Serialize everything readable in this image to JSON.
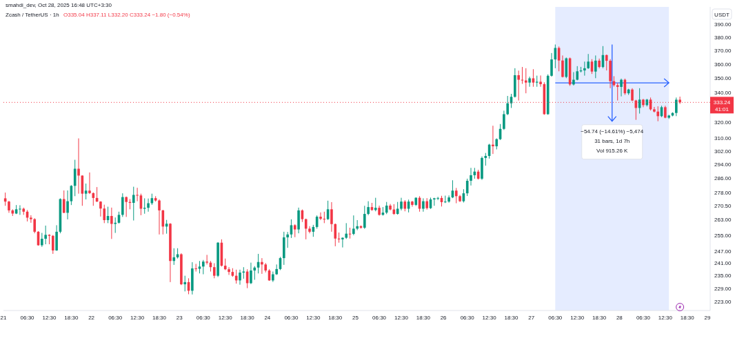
{
  "chart_data": {
    "type": "candlestick",
    "title": "Zcash / TetherUS · 1h",
    "subtitle": "smahdi_dev, Oct 28, 2025 16:48 UTC+3:30",
    "ylabel": "USDT",
    "log": true,
    "annotations": [
      "O335.04 H337.11 L332.20 C333.24 −1.80 (−0.54%)",
      "−54.74 (−14.61%) −5,474",
      "31 bars, 1d 7h",
      "Vol 915.26 K",
      "41:01"
    ],
    "xlim": [
      "2025-10-21T00:00",
      "2025-10-29T00:45"
    ],
    "xticks": [
      {
        "value": "2025-10-21T00:00",
        "label": "21"
      },
      {
        "value": "2025-10-21T06:30",
        "label": "06:30"
      },
      {
        "value": "2025-10-21T12:30",
        "label": "12:30"
      },
      {
        "value": "2025-10-21T18:30",
        "label": "18:30"
      },
      {
        "value": "2025-10-22T00:00",
        "label": "22"
      },
      {
        "value": "2025-10-22T06:30",
        "label": "06:30"
      },
      {
        "value": "2025-10-22T12:30",
        "label": "12:30"
      },
      {
        "value": "2025-10-22T18:30",
        "label": "18:30"
      },
      {
        "value": "2025-10-23T00:00",
        "label": "23"
      },
      {
        "value": "2025-10-23T06:30",
        "label": "06:30"
      },
      {
        "value": "2025-10-23T12:30",
        "label": "12:30"
      },
      {
        "value": "2025-10-23T18:30",
        "label": "18:30"
      },
      {
        "value": "2025-10-24T00:00",
        "label": "24"
      },
      {
        "value": "2025-10-24T06:30",
        "label": "06:30"
      },
      {
        "value": "2025-10-24T12:30",
        "label": "12:30"
      },
      {
        "value": "2025-10-24T18:30",
        "label": "18:30"
      },
      {
        "value": "2025-10-25T00:00",
        "label": "25"
      },
      {
        "value": "2025-10-25T06:30",
        "label": "06:30"
      },
      {
        "value": "2025-10-25T12:30",
        "label": "12:30"
      },
      {
        "value": "2025-10-25T18:30",
        "label": "18:30"
      },
      {
        "value": "2025-10-26T00:00",
        "label": "26"
      },
      {
        "value": "2025-10-26T06:30",
        "label": "06:30"
      },
      {
        "value": "2025-10-26T12:30",
        "label": "12:30"
      },
      {
        "value": "2025-10-26T18:30",
        "label": "18:30"
      },
      {
        "value": "2025-10-27T00:00",
        "label": "27"
      },
      {
        "value": "2025-10-27T06:30",
        "label": "06:30"
      },
      {
        "value": "2025-10-27T12:30",
        "label": "12:30"
      },
      {
        "value": "2025-10-27T18:30",
        "label": "18:30"
      },
      {
        "value": "2025-10-28T00:00",
        "label": "28"
      },
      {
        "value": "2025-10-28T06:30",
        "label": "06:30"
      },
      {
        "value": "2025-10-28T12:30",
        "label": "12:30"
      },
      {
        "value": "2025-10-28T18:30",
        "label": "18:30"
      },
      {
        "value": "2025-10-29T00:00",
        "label": "29"
      }
    ],
    "ylim": [
      219,
      404
    ],
    "yticks": [
      {
        "value": 223,
        "label": "223.00"
      },
      {
        "value": 229,
        "label": "229.00"
      },
      {
        "value": 235,
        "label": "235.00"
      },
      {
        "value": 241,
        "label": "241.00"
      },
      {
        "value": 247,
        "label": "247.00"
      },
      {
        "value": 255,
        "label": "255.00"
      },
      {
        "value": 263,
        "label": "263.00"
      },
      {
        "value": 270.5,
        "label": "270.50"
      },
      {
        "value": 278,
        "label": "278.00"
      },
      {
        "value": 286,
        "label": "286.00"
      },
      {
        "value": 294,
        "label": "294.00"
      },
      {
        "value": 302,
        "label": "302.00"
      },
      {
        "value": 310,
        "label": "310.00"
      },
      {
        "value": 320,
        "label": "320.00"
      },
      {
        "value": 340,
        "label": "340.00"
      },
      {
        "value": 350,
        "label": "350.00"
      },
      {
        "value": 360,
        "label": "360.00"
      },
      {
        "value": 370,
        "label": "370.00"
      },
      {
        "value": 380,
        "label": "380.00"
      },
      {
        "value": 390,
        "label": "390.00"
      }
    ],
    "bands": [
      {
        "axis": "x",
        "from": "2025-10-27T06:30",
        "to": "2025-10-28T13:30",
        "color": "#2962ff"
      }
    ],
    "ref_lines": [
      {
        "axis": "y",
        "value": 333.24,
        "label": "333.24",
        "color": "#f23645"
      }
    ],
    "x": [
      "2025-10-21T00:30",
      "2025-10-21T01:30",
      "2025-10-21T02:30",
      "2025-10-21T03:30",
      "2025-10-21T04:30",
      "2025-10-21T05:30",
      "2025-10-21T06:30",
      "2025-10-21T07:30",
      "2025-10-21T08:30",
      "2025-10-21T09:30",
      "2025-10-21T10:30",
      "2025-10-21T11:30",
      "2025-10-21T12:30",
      "2025-10-21T13:30",
      "2025-10-21T14:30",
      "2025-10-21T15:30",
      "2025-10-21T16:30",
      "2025-10-21T17:30",
      "2025-10-21T18:30",
      "2025-10-21T19:30",
      "2025-10-21T20:30",
      "2025-10-21T21:30",
      "2025-10-21T22:30",
      "2025-10-21T23:30",
      "2025-10-22T00:30",
      "2025-10-22T01:30",
      "2025-10-22T02:30",
      "2025-10-22T03:30",
      "2025-10-22T04:30",
      "2025-10-22T05:30",
      "2025-10-22T06:30",
      "2025-10-22T07:30",
      "2025-10-22T08:30",
      "2025-10-22T09:30",
      "2025-10-22T10:30",
      "2025-10-22T11:30",
      "2025-10-22T12:30",
      "2025-10-22T13:30",
      "2025-10-22T14:30",
      "2025-10-22T15:30",
      "2025-10-22T16:30",
      "2025-10-22T17:30",
      "2025-10-22T18:30",
      "2025-10-22T19:30",
      "2025-10-22T20:30",
      "2025-10-22T21:30",
      "2025-10-22T22:30",
      "2025-10-22T23:30",
      "2025-10-23T00:30",
      "2025-10-23T01:30",
      "2025-10-23T02:30",
      "2025-10-23T03:30",
      "2025-10-23T04:30",
      "2025-10-23T05:30",
      "2025-10-23T06:30",
      "2025-10-23T07:30",
      "2025-10-23T08:30",
      "2025-10-23T09:30",
      "2025-10-23T10:30",
      "2025-10-23T11:30",
      "2025-10-23T12:30",
      "2025-10-23T13:30",
      "2025-10-23T14:30",
      "2025-10-23T15:30",
      "2025-10-23T16:30",
      "2025-10-23T17:30",
      "2025-10-23T18:30",
      "2025-10-23T19:30",
      "2025-10-23T20:30",
      "2025-10-23T21:30",
      "2025-10-23T22:30",
      "2025-10-23T23:30",
      "2025-10-24T00:30",
      "2025-10-24T01:30",
      "2025-10-24T02:30",
      "2025-10-24T03:30",
      "2025-10-24T04:30",
      "2025-10-24T05:30",
      "2025-10-24T06:30",
      "2025-10-24T07:30",
      "2025-10-24T08:30",
      "2025-10-24T09:30",
      "2025-10-24T10:30",
      "2025-10-24T11:30",
      "2025-10-24T12:30",
      "2025-10-24T13:30",
      "2025-10-24T14:30",
      "2025-10-24T15:30",
      "2025-10-24T16:30",
      "2025-10-24T17:30",
      "2025-10-24T18:30",
      "2025-10-24T19:30",
      "2025-10-24T20:30",
      "2025-10-24T21:30",
      "2025-10-24T22:30",
      "2025-10-24T23:30",
      "2025-10-25T00:30",
      "2025-10-25T01:30",
      "2025-10-25T02:30",
      "2025-10-25T03:30",
      "2025-10-25T04:30",
      "2025-10-25T05:30",
      "2025-10-25T06:30",
      "2025-10-25T07:30",
      "2025-10-25T08:30",
      "2025-10-25T09:30",
      "2025-10-25T10:30",
      "2025-10-25T11:30",
      "2025-10-25T12:30",
      "2025-10-25T13:30",
      "2025-10-25T14:30",
      "2025-10-25T15:30",
      "2025-10-25T16:30",
      "2025-10-25T17:30",
      "2025-10-25T18:30",
      "2025-10-25T19:30",
      "2025-10-25T20:30",
      "2025-10-25T21:30",
      "2025-10-25T22:30",
      "2025-10-25T23:30",
      "2025-10-26T00:30",
      "2025-10-26T01:30",
      "2025-10-26T02:30",
      "2025-10-26T03:30",
      "2025-10-26T04:30",
      "2025-10-26T05:30",
      "2025-10-26T06:30",
      "2025-10-26T07:30",
      "2025-10-26T08:30",
      "2025-10-26T09:30",
      "2025-10-26T10:30",
      "2025-10-26T11:30",
      "2025-10-26T12:30",
      "2025-10-26T13:30",
      "2025-10-26T14:30",
      "2025-10-26T15:30",
      "2025-10-26T16:30",
      "2025-10-26T17:30",
      "2025-10-26T18:30",
      "2025-10-26T19:30",
      "2025-10-26T20:30",
      "2025-10-26T21:30",
      "2025-10-26T22:30",
      "2025-10-26T23:30",
      "2025-10-27T00:30",
      "2025-10-27T01:30",
      "2025-10-27T02:30",
      "2025-10-27T03:30",
      "2025-10-27T04:30",
      "2025-10-27T05:30",
      "2025-10-27T06:30",
      "2025-10-27T07:30",
      "2025-10-27T08:30",
      "2025-10-27T09:30",
      "2025-10-27T10:30",
      "2025-10-27T11:30",
      "2025-10-27T12:30",
      "2025-10-27T13:30",
      "2025-10-27T14:30",
      "2025-10-27T15:30",
      "2025-10-27T16:30",
      "2025-10-27T17:30",
      "2025-10-27T18:30",
      "2025-10-27T19:30",
      "2025-10-27T20:30",
      "2025-10-27T21:30",
      "2025-10-27T22:30",
      "2025-10-27T23:30",
      "2025-10-28T00:30",
      "2025-10-28T01:30",
      "2025-10-28T02:30",
      "2025-10-28T03:30",
      "2025-10-28T04:30",
      "2025-10-28T05:30",
      "2025-10-28T06:30",
      "2025-10-28T07:30",
      "2025-10-28T08:30",
      "2025-10-28T09:30",
      "2025-10-28T10:30",
      "2025-10-28T11:30",
      "2025-10-28T12:30",
      "2025-10-28T13:30",
      "2025-10-28T14:30",
      "2025-10-28T15:30",
      "2025-10-28T16:30"
    ],
    "ohlc": [
      [
        274.6,
        277.8,
        270.5,
        272.8
      ],
      [
        272.8,
        273.2,
        266.7,
        268.0
      ],
      [
        268.0,
        268.6,
        265.0,
        266.3
      ],
      [
        266.3,
        270.9,
        266.0,
        268.6
      ],
      [
        268.6,
        270.8,
        265.6,
        268.9
      ],
      [
        268.9,
        269.5,
        265.6,
        267.3
      ],
      [
        267.3,
        268.2,
        262.1,
        264.1
      ],
      [
        264.1,
        265.4,
        261.4,
        263.3
      ],
      [
        263.3,
        263.8,
        255.9,
        256.7
      ],
      [
        256.7,
        257.0,
        249.6,
        249.8
      ],
      [
        249.8,
        256.1,
        249.0,
        253.1
      ],
      [
        253.1,
        259.9,
        250.3,
        255.1
      ],
      [
        255.1,
        255.4,
        250.3,
        254.6
      ],
      [
        254.6,
        255.0,
        245.5,
        247.2
      ],
      [
        247.2,
        260.1,
        247.0,
        256.7
      ],
      [
        256.7,
        274.6,
        255.9,
        274.2
      ],
      [
        274.2,
        279.0,
        266.5,
        266.7
      ],
      [
        266.7,
        279.0,
        263.2,
        273.0
      ],
      [
        273.0,
        282.0,
        270.9,
        281.6
      ],
      [
        281.6,
        296.8,
        275.8,
        291.5
      ],
      [
        291.5,
        309.9,
        277.2,
        287.5
      ],
      [
        287.5,
        287.6,
        270.5,
        277.2
      ],
      [
        277.2,
        282.9,
        274.0,
        278.9
      ],
      [
        278.9,
        289.3,
        277.0,
        277.5
      ],
      [
        277.5,
        277.9,
        270.5,
        274.8
      ],
      [
        274.8,
        280.9,
        272.6,
        272.8
      ],
      [
        272.8,
        273.0,
        264.7,
        269.0
      ],
      [
        269.0,
        271.1,
        261.2,
        262.8
      ],
      [
        262.8,
        270.0,
        261.2,
        265.0
      ],
      [
        265.0,
        269.5,
        253.0,
        260.8
      ],
      [
        260.8,
        264.2,
        256.1,
        261.4
      ],
      [
        261.4,
        267.3,
        261.0,
        265.6
      ],
      [
        265.6,
        277.4,
        264.5,
        275.3
      ],
      [
        275.3,
        275.6,
        264.5,
        272.6
      ],
      [
        272.6,
        274.2,
        268.6,
        272.1
      ],
      [
        272.1,
        281.1,
        262.6,
        276.5
      ],
      [
        276.5,
        280.5,
        273.0,
        276.2
      ],
      [
        276.2,
        277.2,
        265.4,
        268.9
      ],
      [
        268.9,
        274.6,
        266.2,
        269.4
      ],
      [
        269.4,
        274.5,
        267.3,
        271.9
      ],
      [
        271.9,
        277.2,
        271.0,
        274.7
      ],
      [
        274.7,
        275.8,
        272.8,
        273.4
      ],
      [
        273.4,
        274.0,
        255.3,
        268.0
      ],
      [
        268.0,
        268.3,
        255.3,
        259.4
      ],
      [
        259.4,
        262.9,
        255.7,
        260.9
      ],
      [
        260.9,
        261.2,
        231.9,
        242.0
      ],
      [
        242.0,
        248.3,
        240.1,
        243.8
      ],
      [
        243.8,
        248.3,
        243.2,
        245.3
      ],
      [
        245.3,
        245.8,
        230.5,
        230.9
      ],
      [
        230.9,
        234.9,
        227.6,
        231.9
      ],
      [
        231.9,
        233.7,
        226.3,
        227.9
      ],
      [
        227.9,
        241.4,
        226.2,
        238.4
      ],
      [
        238.4,
        240.6,
        236.9,
        238.2
      ],
      [
        238.2,
        242.0,
        236.0,
        239.3
      ],
      [
        239.3,
        242.5,
        235.6,
        241.7
      ],
      [
        241.7,
        245.0,
        240.3,
        241.2
      ],
      [
        241.2,
        242.0,
        236.9,
        239.0
      ],
      [
        239.0,
        240.9,
        233.7,
        234.9
      ],
      [
        234.9,
        251.4,
        234.3,
        251.1
      ],
      [
        251.1,
        252.8,
        239.3,
        239.7
      ],
      [
        239.7,
        243.2,
        237.6,
        238.0
      ],
      [
        238.0,
        239.0,
        235.3,
        236.7
      ],
      [
        236.7,
        238.5,
        234.4,
        234.9
      ],
      [
        234.9,
        237.8,
        231.2,
        232.7
      ],
      [
        232.7,
        237.8,
        230.7,
        236.4
      ],
      [
        236.4,
        239.0,
        233.5,
        236.9
      ],
      [
        236.9,
        238.0,
        229.1,
        231.4
      ],
      [
        231.4,
        241.2,
        231.0,
        237.4
      ],
      [
        237.4,
        239.5,
        233.0,
        238.8
      ],
      [
        238.8,
        245.5,
        236.0,
        241.5
      ],
      [
        241.5,
        243.4,
        235.8,
        240.3
      ],
      [
        240.3,
        241.0,
        236.5,
        237.4
      ],
      [
        237.4,
        238.0,
        232.5,
        232.7
      ],
      [
        232.7,
        236.9,
        232.0,
        235.6
      ],
      [
        235.6,
        240.3,
        235.3,
        238.1
      ],
      [
        238.1,
        244.0,
        237.6,
        243.4
      ],
      [
        243.4,
        256.7,
        240.1,
        253.8
      ],
      [
        253.8,
        256.6,
        248.5,
        255.3
      ],
      [
        255.3,
        263.2,
        253.5,
        260.1
      ],
      [
        260.1,
        260.6,
        253.9,
        257.9
      ],
      [
        257.9,
        269.5,
        255.9,
        268.0
      ],
      [
        268.0,
        268.5,
        261.8,
        263.3
      ],
      [
        263.3,
        263.6,
        252.8,
        258.3
      ],
      [
        258.3,
        259.6,
        255.9,
        256.7
      ],
      [
        256.7,
        260.3,
        254.1,
        259.2
      ],
      [
        259.2,
        265.3,
        258.3,
        264.6
      ],
      [
        264.6,
        266.9,
        262.8,
        263.5
      ],
      [
        263.5,
        267.3,
        261.2,
        263.3
      ],
      [
        263.3,
        273.3,
        262.9,
        268.6
      ],
      [
        268.6,
        272.5,
        256.7,
        260.7
      ],
      [
        260.7,
        261.0,
        249.3,
        253.2
      ],
      [
        253.2,
        256.3,
        251.1,
        252.8
      ],
      [
        252.8,
        253.8,
        248.7,
        253.6
      ],
      [
        253.6,
        261.2,
        253.0,
        255.7
      ],
      [
        255.7,
        258.8,
        253.2,
        255.6
      ],
      [
        255.6,
        265.3,
        254.9,
        258.3
      ],
      [
        258.3,
        262.8,
        257.5,
        259.6
      ],
      [
        259.6,
        260.0,
        258.3,
        258.8
      ],
      [
        258.8,
        270.5,
        258.2,
        266.1
      ],
      [
        266.1,
        273.0,
        265.4,
        269.8
      ],
      [
        269.8,
        272.1,
        267.8,
        268.2
      ],
      [
        268.2,
        274.9,
        267.5,
        269.4
      ],
      [
        269.4,
        270.6,
        265.2,
        265.6
      ],
      [
        265.6,
        269.8,
        265.2,
        266.8
      ],
      [
        266.8,
        272.6,
        266.0,
        270.6
      ],
      [
        270.6,
        271.5,
        268.0,
        268.5
      ],
      [
        268.5,
        271.4,
        265.6,
        266.1
      ],
      [
        266.1,
        272.6,
        265.7,
        268.9
      ],
      [
        268.9,
        274.9,
        268.0,
        272.8
      ],
      [
        272.8,
        273.6,
        267.5,
        268.9
      ],
      [
        268.9,
        273.9,
        266.9,
        272.8
      ],
      [
        272.8,
        273.2,
        270.0,
        271.0
      ],
      [
        271.0,
        275.2,
        270.4,
        274.9
      ],
      [
        274.9,
        275.8,
        267.3,
        268.9
      ],
      [
        268.9,
        274.6,
        267.3,
        273.0
      ],
      [
        273.0,
        274.7,
        268.4,
        269.2
      ],
      [
        269.2,
        275.0,
        268.8,
        274.0
      ],
      [
        274.0,
        274.9,
        270.5,
        274.6
      ],
      [
        274.6,
        275.4,
        273.6,
        274.8
      ],
      [
        274.8,
        276.0,
        270.1,
        272.5
      ],
      [
        272.5,
        276.1,
        272.0,
        272.8
      ],
      [
        272.8,
        276.2,
        272.2,
        275.1
      ],
      [
        275.1,
        284.8,
        274.7,
        278.9
      ],
      [
        278.9,
        280.4,
        271.9,
        275.8
      ],
      [
        275.8,
        276.5,
        272.6,
        273.0
      ],
      [
        273.0,
        279.7,
        272.3,
        277.4
      ],
      [
        277.4,
        285.7,
        275.9,
        284.5
      ],
      [
        284.5,
        292.0,
        281.8,
        287.7
      ],
      [
        287.7,
        292.0,
        285.7,
        289.8
      ],
      [
        289.8,
        290.9,
        285.2,
        285.7
      ],
      [
        285.7,
        298.8,
        285.0,
        297.9
      ],
      [
        297.9,
        300.9,
        293.3,
        299.1
      ],
      [
        299.1,
        306.5,
        297.5,
        306.0
      ],
      [
        306.0,
        317.9,
        300.3,
        305.0
      ],
      [
        305.0,
        309.9,
        303.1,
        309.4
      ],
      [
        309.4,
        319.0,
        308.9,
        315.9
      ],
      [
        315.9,
        327.7,
        315.2,
        325.4
      ],
      [
        325.4,
        337.6,
        324.8,
        332.6
      ],
      [
        332.6,
        339.0,
        329.5,
        337.0
      ],
      [
        337.0,
        357.0,
        336.5,
        352.0
      ],
      [
        352.0,
        355.3,
        334.5,
        348.8
      ],
      [
        348.8,
        357.9,
        345.9,
        348.3
      ],
      [
        348.3,
        357.0,
        339.4,
        346.8
      ],
      [
        346.8,
        351.0,
        343.9,
        349.8
      ],
      [
        349.8,
        356.3,
        343.9,
        346.8
      ],
      [
        346.8,
        351.7,
        343.9,
        347.4
      ],
      [
        347.4,
        351.8,
        343.9,
        345.7
      ],
      [
        345.7,
        347.0,
        325.0,
        325.4
      ],
      [
        325.4,
        352.6,
        325.0,
        351.6
      ],
      [
        351.6,
        368.1,
        351.0,
        363.4
      ],
      [
        363.4,
        374.5,
        357.0,
        371.9
      ],
      [
        371.9,
        373.0,
        354.8,
        362.6
      ],
      [
        362.6,
        366.3,
        350.4,
        350.8
      ],
      [
        350.8,
        364.8,
        349.9,
        364.2
      ],
      [
        364.2,
        364.8,
        344.5,
        345.5
      ],
      [
        345.5,
        354.2,
        344.8,
        348.8
      ],
      [
        348.8,
        358.5,
        348.4,
        354.8
      ],
      [
        354.8,
        358.0,
        354.0,
        355.4
      ],
      [
        355.4,
        361.8,
        351.7,
        357.0
      ],
      [
        357.0,
        367.4,
        356.5,
        361.8
      ],
      [
        361.8,
        363.6,
        352.9,
        354.6
      ],
      [
        354.6,
        366.3,
        349.9,
        362.5
      ],
      [
        362.5,
        364.0,
        356.9,
        357.9
      ],
      [
        357.9,
        373.3,
        357.0,
        366.6
      ],
      [
        366.6,
        367.0,
        355.4,
        362.4
      ],
      [
        362.4,
        363.6,
        342.9,
        347.8
      ],
      [
        347.8,
        351.3,
        344.0,
        345.0
      ],
      [
        345.0,
        346.5,
        334.5,
        343.8
      ],
      [
        343.8,
        349.6,
        337.3,
        348.8
      ],
      [
        348.8,
        349.6,
        338.3,
        339.4
      ],
      [
        339.4,
        342.5,
        338.3,
        342.0
      ],
      [
        342.0,
        342.9,
        334.0,
        334.5
      ],
      [
        334.5,
        335.0,
        321.7,
        329.5
      ],
      [
        329.5,
        342.9,
        325.8,
        335.1
      ],
      [
        335.1,
        335.6,
        330.0,
        331.4
      ],
      [
        331.4,
        335.6,
        330.5,
        335.1
      ],
      [
        335.1,
        336.5,
        327.8,
        328.6
      ],
      [
        328.6,
        330.2,
        326.5,
        327.1
      ],
      [
        327.1,
        330.6,
        320.8,
        324.1
      ],
      [
        324.1,
        331.0,
        323.5,
        330.0
      ],
      [
        330.0,
        331.0,
        322.7,
        323.1
      ],
      [
        323.1,
        325.0,
        322.3,
        324.5
      ],
      [
        324.5,
        326.6,
        324.0,
        326.2
      ],
      [
        326.2,
        336.5,
        324.1,
        335.04
      ],
      [
        335.04,
        337.11,
        332.2,
        333.24
      ]
    ]
  }
}
